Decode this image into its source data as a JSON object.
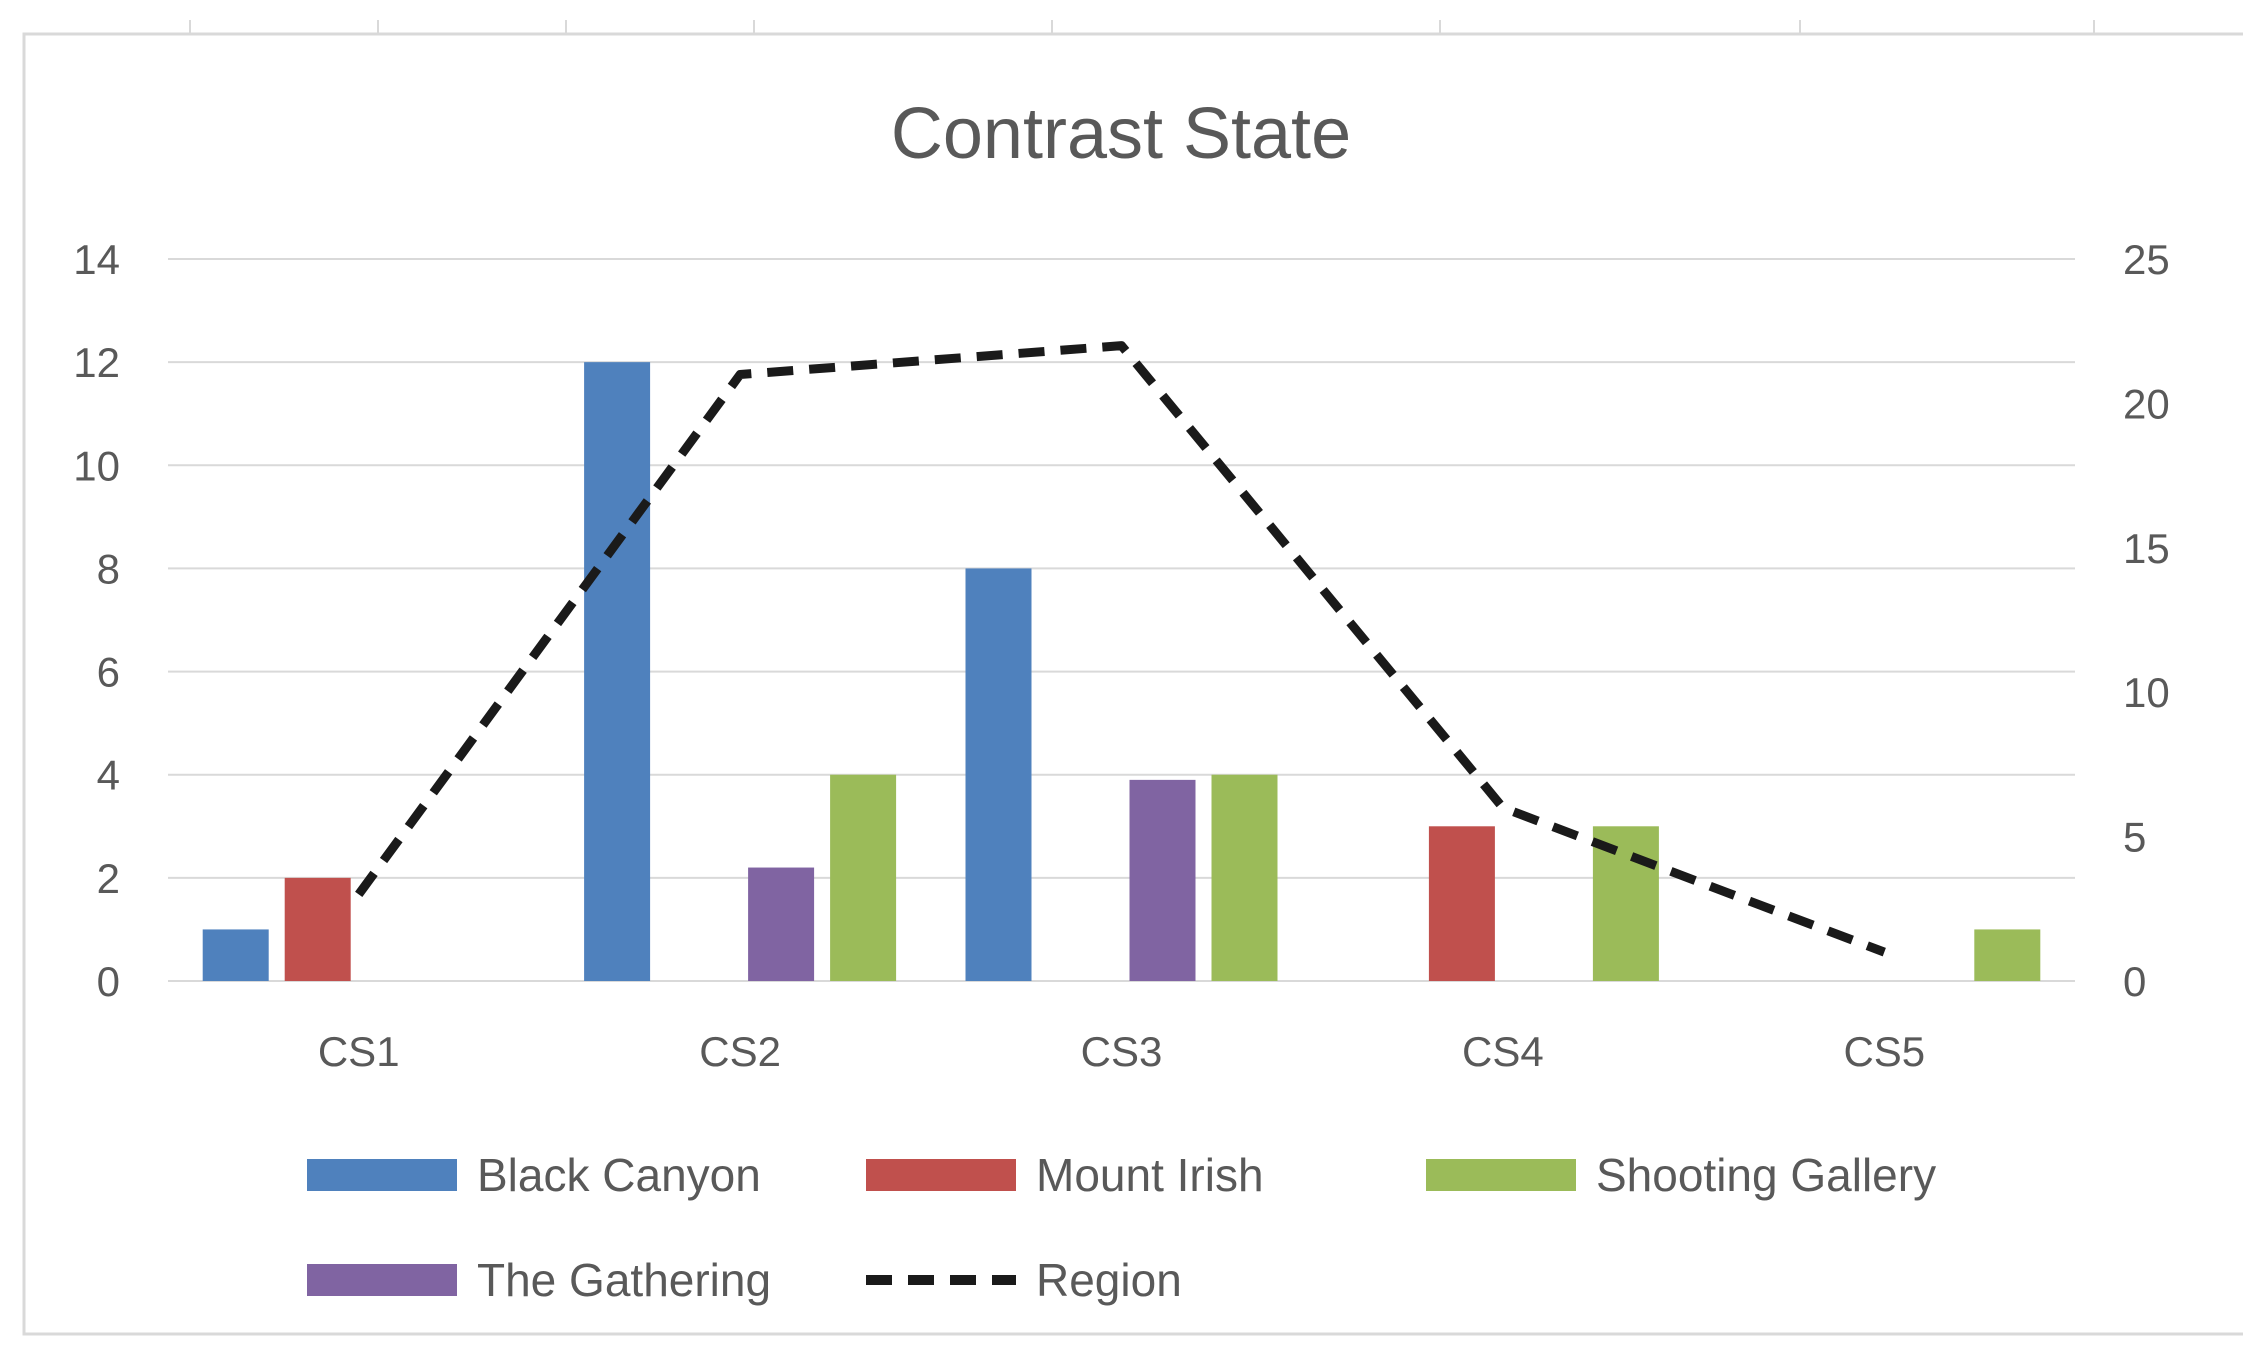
{
  "chart_data": {
    "type": "bar",
    "title": "Contrast State",
    "categories": [
      "CS1",
      "CS2",
      "CS3",
      "CS4",
      "CS5"
    ],
    "series": [
      {
        "name": "Black Canyon",
        "values": [
          1,
          12,
          8,
          0,
          0
        ],
        "color": "#4f81bd",
        "axis": "left",
        "type": "bar"
      },
      {
        "name": "Mount Irish",
        "values": [
          2,
          0,
          0,
          3,
          0
        ],
        "color": "#c0504d",
        "axis": "left",
        "type": "bar"
      },
      {
        "name": "The Gathering",
        "values": [
          0,
          2.2,
          3.9,
          0,
          0
        ],
        "color": "#8064a2",
        "axis": "left",
        "type": "bar"
      },
      {
        "name": "Shooting Gallery",
        "values": [
          0,
          4,
          4,
          3,
          1
        ],
        "color": "#9bbb59",
        "axis": "left",
        "type": "bar"
      },
      {
        "name": "Region",
        "values": [
          3,
          21,
          22,
          6,
          1
        ],
        "color": "#1a1a1a",
        "axis": "right",
        "type": "line",
        "style": "dashed"
      }
    ],
    "left_axis": {
      "ylim": [
        0,
        14
      ],
      "ticks": [
        0,
        2,
        4,
        6,
        8,
        10,
        12,
        14
      ]
    },
    "right_axis": {
      "ylim": [
        0,
        25
      ],
      "ticks": [
        0,
        5,
        10,
        15,
        20,
        25
      ]
    },
    "xlabel": "",
    "ylabel": "",
    "grid": true,
    "legend": {
      "placement": "bottom",
      "rows": [
        [
          "Black Canyon",
          "Mount Irish",
          "Shooting Gallery"
        ],
        [
          "The Gathering",
          "Region"
        ]
      ]
    }
  }
}
